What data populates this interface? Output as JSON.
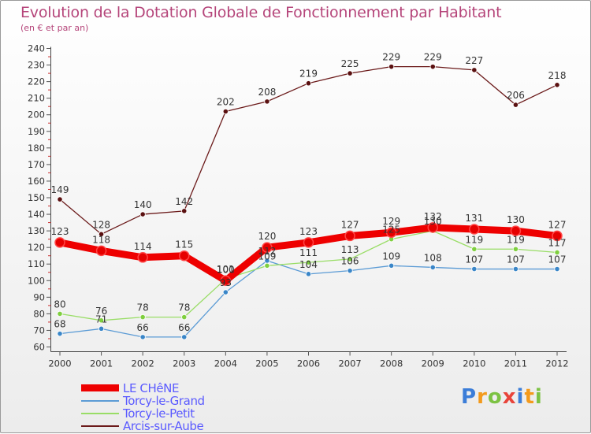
{
  "title": "Evolution de la Dotation Globale de Fonctionnement par Habitant",
  "subtitle": "(en € et par an)",
  "logo": {
    "text": "Proxiti",
    "letters": [
      "P",
      "r",
      "o",
      "x",
      "i",
      "t",
      "i"
    ],
    "colors": [
      "#3b7dd8",
      "#f39a1c",
      "#7cc243",
      "#e8443a",
      "#3b7dd8",
      "#f39a1c",
      "#7cc243"
    ]
  },
  "chart_data": {
    "type": "line",
    "title": "Evolution de la Dotation Globale de Fonctionnement par Habitant",
    "subtitle": "(en € et par an)",
    "xlabel": "",
    "ylabel": "",
    "ylim": [
      60,
      240
    ],
    "yticks": [
      60,
      70,
      80,
      90,
      100,
      110,
      120,
      130,
      140,
      150,
      160,
      170,
      180,
      190,
      200,
      210,
      220,
      230,
      240
    ],
    "grid": false,
    "legend_position": "bottom-left",
    "categories": [
      "2000",
      "2001",
      "2002",
      "2003",
      "2004",
      "2005",
      "2006",
      "2007",
      "2008",
      "2009",
      "2010",
      "2011",
      "2012"
    ],
    "series": [
      {
        "name": "LE CHêNE",
        "color": "#ee0000",
        "thick": true,
        "values": [
          123,
          118,
          114,
          115,
          100,
          120,
          123,
          127,
          129,
          132,
          131,
          130,
          127
        ],
        "labels": [
          "123",
          "118",
          "114",
          "115",
          "100",
          "120",
          "123",
          "127",
          "129",
          "132",
          "131",
          "130",
          "127"
        ]
      },
      {
        "name": "Torcy-le-Grand",
        "color": "#5b9bd5",
        "thick": false,
        "values": [
          68,
          71,
          66,
          66,
          93,
          112,
          104,
          106,
          109,
          108,
          107,
          107,
          107
        ],
        "labels": [
          "68",
          "71",
          "66",
          "66",
          "93",
          "112",
          "104",
          "106",
          "109",
          "108",
          "107",
          "107",
          "107"
        ]
      },
      {
        "name": "Torcy-le-Petit",
        "color": "#99dd66",
        "thick": false,
        "values": [
          80,
          76,
          78,
          78,
          101,
          109,
          111,
          113,
          125,
          130,
          119,
          119,
          117
        ],
        "labels": [
          "80",
          "76",
          "78",
          "78",
          "101",
          "109",
          "111",
          "113",
          "125",
          "130",
          "119",
          "119",
          "117"
        ]
      },
      {
        "name": "Arcis-sur-Aube",
        "color": "#6b1a1a",
        "thick": false,
        "values": [
          149,
          128,
          140,
          142,
          202,
          208,
          219,
          225,
          229,
          229,
          227,
          206,
          218
        ],
        "labels": [
          "149",
          "128",
          "140",
          "142",
          "202",
          "208",
          "219",
          "225",
          "229",
          "229",
          "227",
          "206",
          "218"
        ]
      }
    ]
  }
}
